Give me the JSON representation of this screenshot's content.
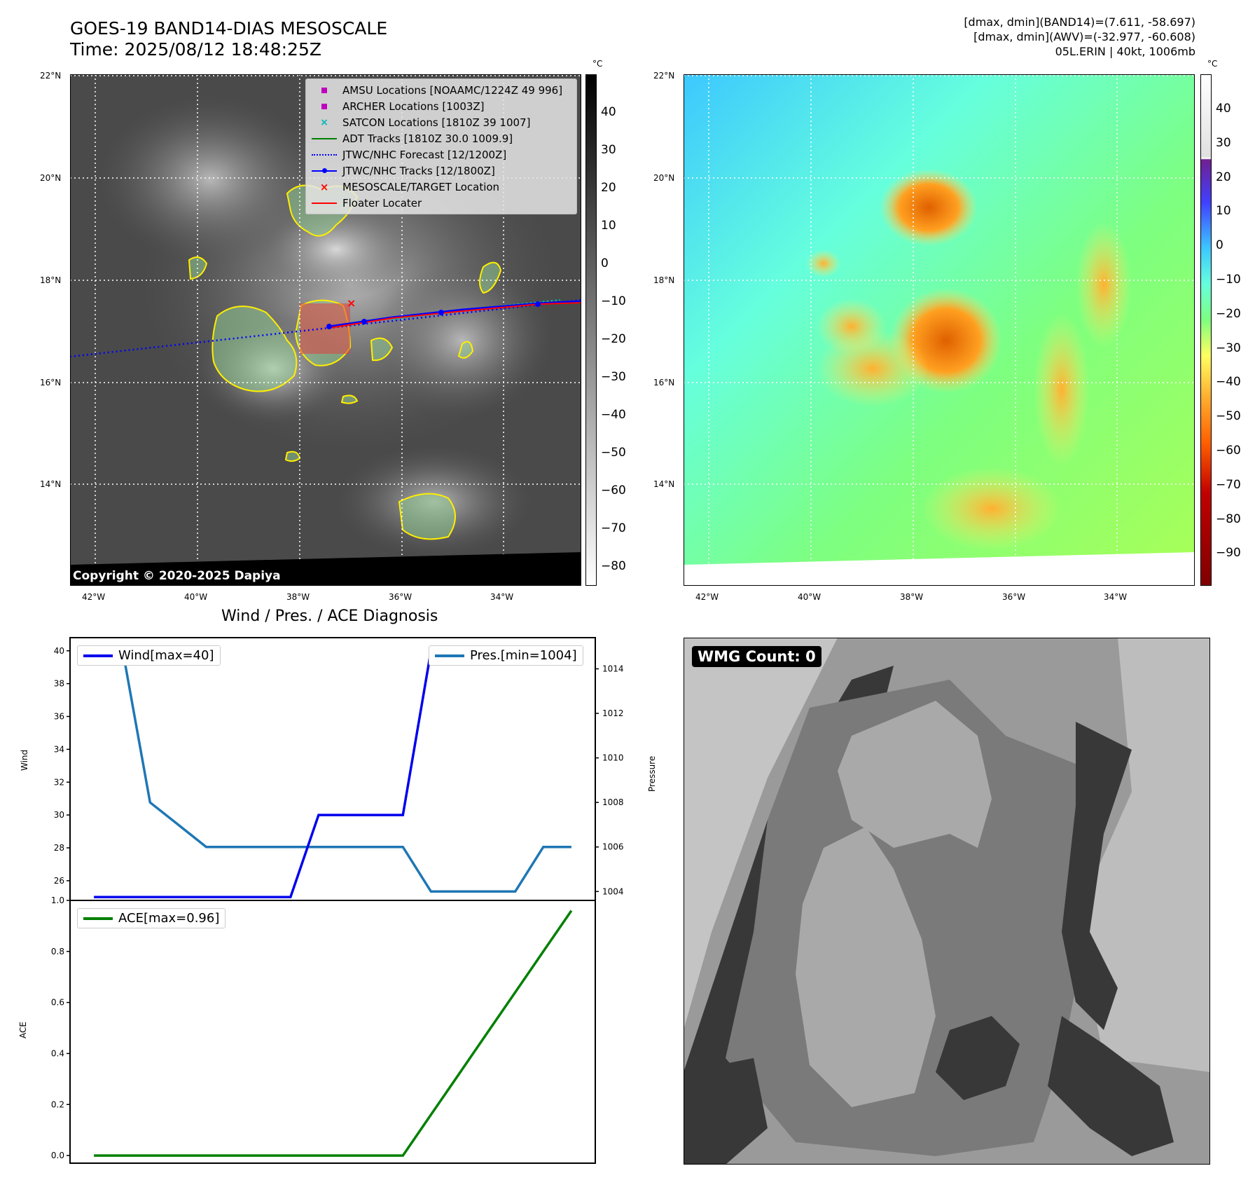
{
  "header": {
    "title_line1": "GOES-19 BAND14-DIAS MESOSCALE",
    "title_line2": "Time: 2025/08/12 18:48:25Z",
    "info_line1": "[dmax, dmin](BAND14)=(7.611, -58.697)",
    "info_line2": "[dmax, dmin](AWV)=(-32.977, -60.608)",
    "info_line3": "05L.ERIN | 40kt, 1006mb"
  },
  "map": {
    "lat_labels": [
      "22°N",
      "20°N",
      "18°N",
      "16°N",
      "14°N"
    ],
    "lon_labels": [
      "42°W",
      "40°W",
      "38°W",
      "36°W",
      "34°W"
    ],
    "copyright": "Copyright © 2020-2025 Dapiya",
    "legend": [
      {
        "label": "AMSU Locations [NOAAMC/1224Z 49 996]",
        "color": "#c000c0",
        "symbol": "square"
      },
      {
        "label": "ARCHER Locations [1003Z]",
        "color": "#c000c0",
        "symbol": "square"
      },
      {
        "label": "SATCON Locations [1810Z 39 1007]",
        "color": "#00b8b8",
        "symbol": "x"
      },
      {
        "label": "ADT Tracks [1810Z 30.0 1009.9]",
        "color": "#008000",
        "symbol": "line"
      },
      {
        "label": "JTWC/NHC Forecast [12/1200Z]",
        "color": "#0000ff",
        "symbol": "dotted"
      },
      {
        "label": "JTWC/NHC Tracks [12/1800Z]",
        "color": "#0000ff",
        "symbol": "dotline"
      },
      {
        "label": "MESOSCALE/TARGET Location",
        "color": "#ff0000",
        "symbol": "x"
      },
      {
        "label": "Floater Locater",
        "color": "#ff0000",
        "symbol": "line"
      }
    ]
  },
  "colorbar1": {
    "unit": "°C",
    "ticks": [
      "40",
      "30",
      "20",
      "10",
      "0",
      "−10",
      "−20",
      "−30",
      "−40",
      "−50",
      "−60",
      "−70",
      "−80"
    ]
  },
  "colorbar2": {
    "unit": "°C",
    "ticks": [
      "40",
      "30",
      "20",
      "10",
      "0",
      "−10",
      "−20",
      "−30",
      "−40",
      "−50",
      "−60",
      "−70",
      "−80",
      "−90"
    ]
  },
  "diagnosis": {
    "title": "Wind / Pres. / ACE Diagnosis",
    "wind_label": "Wind",
    "pressure_label": "Pressure",
    "ace_label": "ACE",
    "wind_legend": "Wind[max=40]",
    "pres_legend": "Pres.[min=1004]",
    "ace_legend": "ACE[max=0.96]",
    "wind_ticks": [
      "40",
      "38",
      "36",
      "34",
      "32",
      "30",
      "28",
      "26"
    ],
    "pres_ticks": [
      "1014",
      "1012",
      "1010",
      "1008",
      "1006",
      "1004"
    ],
    "ace_ticks": [
      "1.0",
      "0.8",
      "0.6",
      "0.4",
      "0.2",
      "0.0"
    ],
    "colors": {
      "wind": "#0000ee",
      "pressure": "#1f77b4",
      "ace": "#008000"
    }
  },
  "wmg": {
    "label": "WMG Count: 0"
  },
  "chart_data": [
    {
      "type": "line",
      "title": "Wind / Pres. / ACE Diagnosis",
      "ylabel": "Wind",
      "ylim": [
        24.8,
        40.8
      ],
      "series": [
        {
          "name": "Wind[max=40]",
          "x": [
            0,
            1,
            2,
            3,
            4,
            5,
            6,
            7,
            8,
            9,
            10,
            11,
            12,
            13,
            14,
            15,
            16,
            17
          ],
          "values": [
            25,
            25,
            25,
            25,
            25,
            25,
            25,
            25,
            30,
            30,
            30,
            30,
            40,
            40,
            40,
            40,
            40,
            40
          ]
        }
      ]
    },
    {
      "type": "line",
      "ylabel": "Pressure",
      "ylim": [
        1003.6,
        1015.4
      ],
      "series": [
        {
          "name": "Pres.[min=1004]",
          "x": [
            0,
            1,
            2,
            3,
            4,
            5,
            6,
            7,
            8,
            9,
            10,
            11,
            12,
            13,
            14,
            15,
            16,
            17
          ],
          "values": [
            1015,
            1015,
            1008,
            1007,
            1006,
            1006,
            1006,
            1006,
            1006,
            1006,
            1006,
            1006,
            1004,
            1004,
            1004,
            1004,
            1006,
            1006
          ]
        }
      ]
    },
    {
      "type": "line",
      "ylabel": "ACE",
      "ylim": [
        -0.03,
        1.0
      ],
      "series": [
        {
          "name": "ACE[max=0.96]",
          "x": [
            0,
            1,
            2,
            3,
            4,
            5,
            6,
            7,
            8,
            9,
            10,
            11,
            12,
            13,
            14,
            15,
            16,
            17
          ],
          "values": [
            0,
            0,
            0,
            0,
            0,
            0,
            0,
            0,
            0,
            0,
            0,
            0,
            0.16,
            0.32,
            0.48,
            0.64,
            0.8,
            0.96
          ]
        }
      ]
    }
  ]
}
